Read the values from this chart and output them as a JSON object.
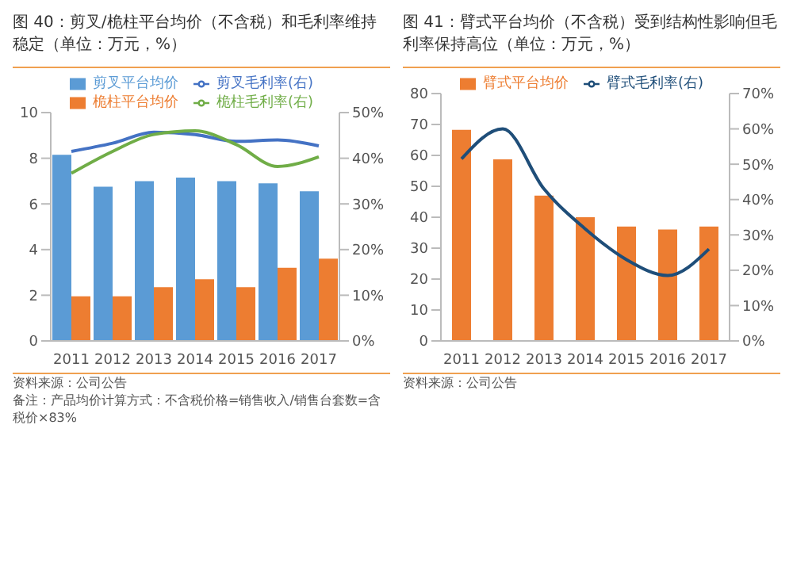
{
  "chart_data": [
    {
      "type": "bar",
      "title": "图 40：剪叉/桅柱平台均价（不含税）和毛利率维持稳定（单位：万元，%）",
      "categories": [
        "2011",
        "2012",
        "2013",
        "2014",
        "2015",
        "2016",
        "2017"
      ],
      "series": [
        {
          "name": "剪叉平台均价",
          "color": "#5b9bd5",
          "values": [
            8.15,
            6.75,
            7.0,
            7.15,
            7.0,
            6.9,
            6.55
          ]
        },
        {
          "name": "桅柱平台均价",
          "color": "#ed7d31",
          "values": [
            1.95,
            1.95,
            2.35,
            2.7,
            2.35,
            3.2,
            3.6
          ]
        },
        {
          "name": "剪叉毛利率(右)",
          "type": "line",
          "axis": "y2",
          "color": "#4472c4",
          "values": [
            41.5,
            43.3,
            45.7,
            45.2,
            43.7,
            44,
            42.7
          ]
        },
        {
          "name": "桅柱毛利率(右)",
          "type": "line",
          "axis": "y2",
          "color": "#70ad47",
          "values": [
            36.7,
            41.5,
            45.2,
            46,
            43,
            38.2,
            40.3
          ]
        }
      ],
      "ylim": [
        0,
        10
      ],
      "yticks": [
        0,
        2,
        4,
        6,
        8,
        10
      ],
      "y2lim": [
        0,
        50
      ],
      "y2ticks": [
        {
          "value": 0,
          "label": "0%"
        },
        {
          "value": 10,
          "label": "10%"
        },
        {
          "value": 20,
          "label": "20%"
        },
        {
          "value": 30,
          "label": "30%"
        },
        {
          "value": 40,
          "label": "40%"
        },
        {
          "value": 50,
          "label": "50%"
        }
      ],
      "legend": "top",
      "marker": "none",
      "annotations": [
        "资料来源：公司公告",
        "备注：产品均价计算方式：不含税价格=销售收入/销售台套数=含税价×83%"
      ]
    },
    {
      "type": "bar",
      "title": "图 41：臂式平台均价（不含税）受到结构性影响但毛利率保持高位（单位：万元，%）",
      "categories": [
        "2011",
        "2012",
        "2013",
        "2014",
        "2015",
        "2016",
        "2017"
      ],
      "series": [
        {
          "name": "臂式平台均价",
          "color": "#ed7d31",
          "values": [
            68.3,
            58.7,
            47,
            40,
            37,
            36,
            37
          ]
        },
        {
          "name": "臂式毛利率(右)",
          "type": "line",
          "axis": "y2",
          "color": "#1f4e79",
          "values": [
            51.5,
            60,
            43,
            31.7,
            23,
            18.5,
            26
          ]
        }
      ],
      "ylim": [
        0,
        80
      ],
      "yticks": [
        0,
        10,
        20,
        30,
        40,
        50,
        60,
        70,
        80
      ],
      "y2lim": [
        0,
        70
      ],
      "y2ticks": [
        {
          "value": 0,
          "label": "0%"
        },
        {
          "value": 10,
          "label": "10%"
        },
        {
          "value": 20,
          "label": "20%"
        },
        {
          "value": 30,
          "label": "30%"
        },
        {
          "value": 40,
          "label": "40%"
        },
        {
          "value": 50,
          "label": "50%"
        },
        {
          "value": 60,
          "label": "60%"
        },
        {
          "value": 70,
          "label": "70%"
        }
      ],
      "legend": "top",
      "marker": "none",
      "annotations": [
        "资料来源：公司公告"
      ]
    }
  ]
}
